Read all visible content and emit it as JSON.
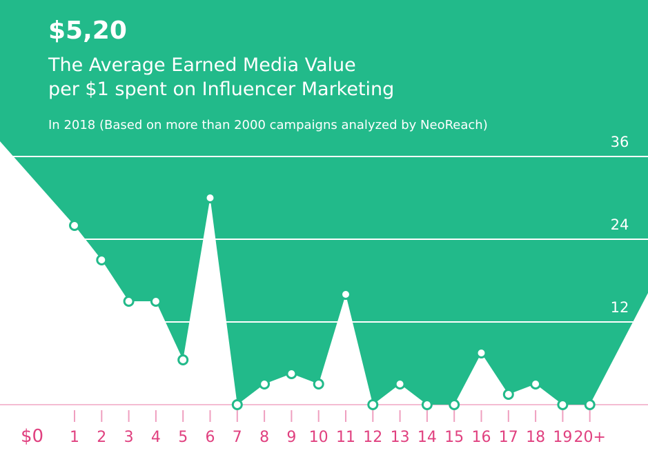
{
  "header": {
    "value": "$5,20",
    "title_line1": "The Average Earned Media Value",
    "title_line2": "per $1 spent on Influencer Marketing",
    "subtitle": "In 2018 (Based on more than 2000 campaigns analyzed by NeoReach)"
  },
  "colors": {
    "fill": "#22ba8a",
    "accent": "#e0407f",
    "white": "#ffffff"
  },
  "chart_data": {
    "type": "area",
    "title": "The Average Earned Media Value per $1 spent on Influencer Marketing",
    "x_labels": [
      "$0",
      "1",
      "2",
      "3",
      "4",
      "5",
      "6",
      "7",
      "8",
      "9",
      "10",
      "11",
      "12",
      "13",
      "14",
      "15",
      "16",
      "17",
      "18",
      "19",
      "20+"
    ],
    "points": [
      {
        "x": "1",
        "y": 26
      },
      {
        "x": "2",
        "y": 21
      },
      {
        "x": "3",
        "y": 15
      },
      {
        "x": "4",
        "y": 15
      },
      {
        "x": "5",
        "y": 6.5
      },
      {
        "x": "6",
        "y": 30
      },
      {
        "x": "7",
        "y": 0
      },
      {
        "x": "8",
        "y": 3
      },
      {
        "x": "9",
        "y": 4.5
      },
      {
        "x": "10",
        "y": 3
      },
      {
        "x": "11",
        "y": 16
      },
      {
        "x": "12",
        "y": 0
      },
      {
        "x": "13",
        "y": 3
      },
      {
        "x": "14",
        "y": 0
      },
      {
        "x": "15",
        "y": 0
      },
      {
        "x": "16",
        "y": 7.5
      },
      {
        "x": "17",
        "y": 1.5
      },
      {
        "x": "18",
        "y": 3
      },
      {
        "x": "19",
        "y": 0
      },
      {
        "x": "20+",
        "y": 0
      }
    ],
    "y_ticks": [
      0,
      12,
      24,
      36
    ],
    "ylim": [
      0,
      36
    ],
    "grid": true
  }
}
